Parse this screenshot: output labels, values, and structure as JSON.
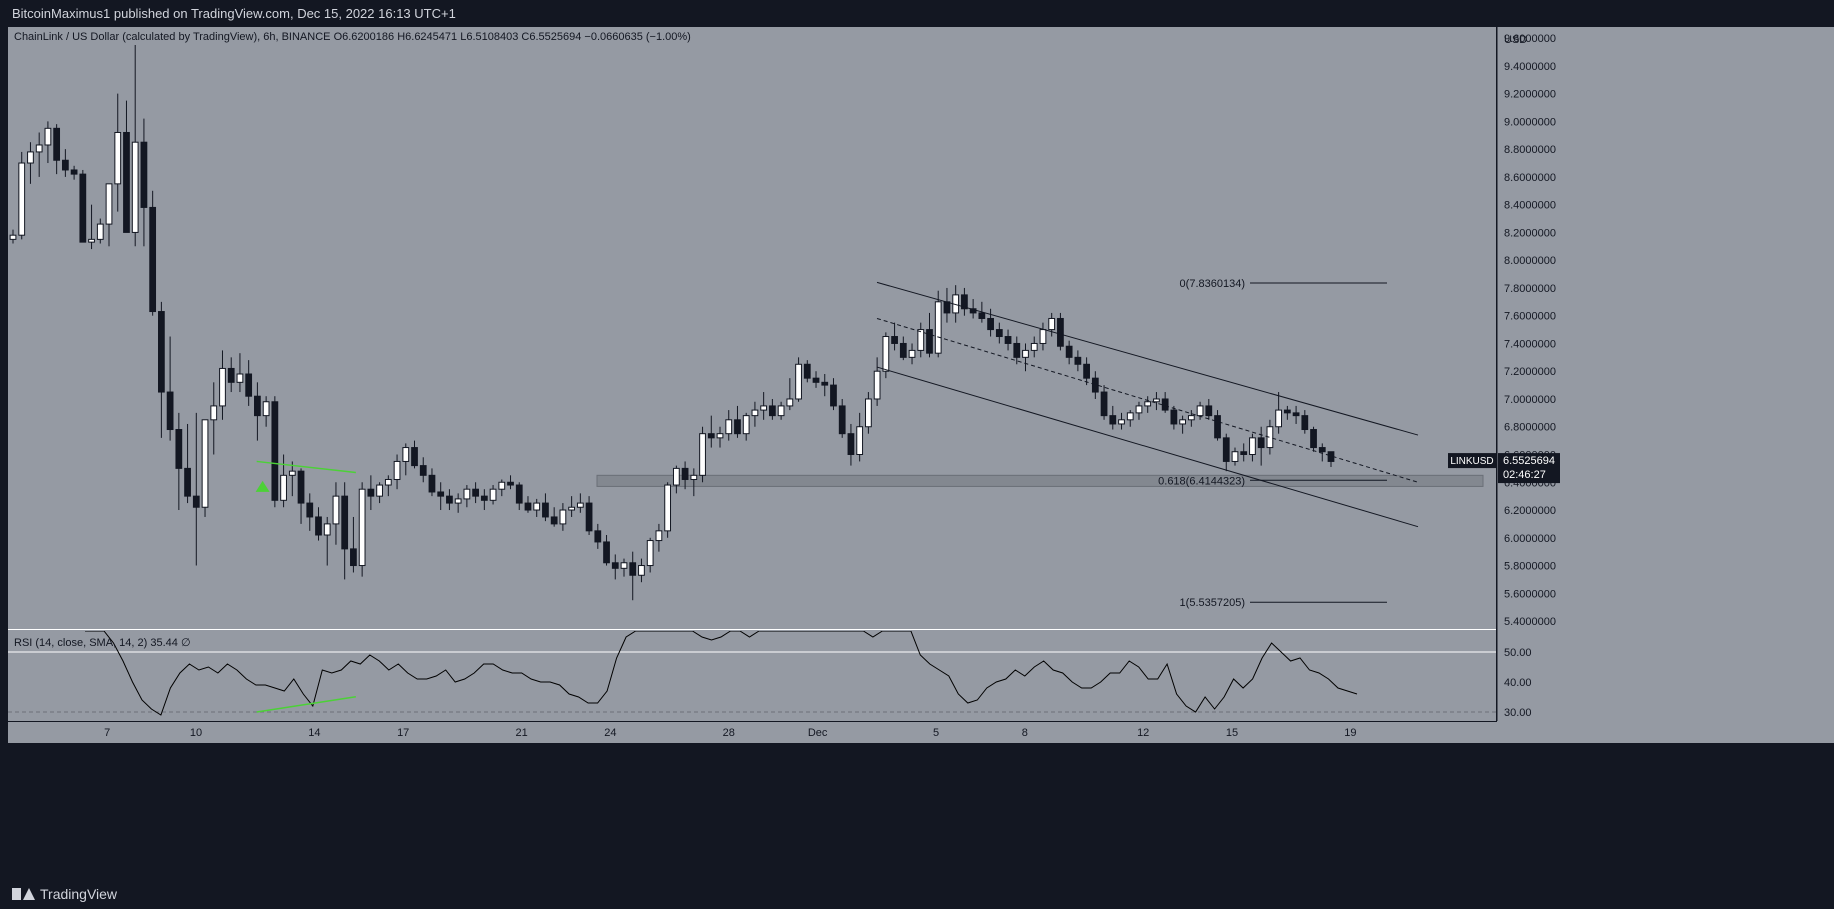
{
  "header": {
    "published": "BitcoinMaximus1 published on TradingView.com, Dec 15, 2022 16:13 UTC+1"
  },
  "legend": {
    "symbol": "ChainLink / US Dollar (calculated by TradingView), 6h, BINANCE",
    "o_label": "O",
    "o": "6.6200186",
    "h_label": "H",
    "h": "6.6245471",
    "l_label": "L",
    "l": "6.5108403",
    "c_label": "C",
    "c": "6.5525694",
    "change": "−0.0660635 (−1.00%)"
  },
  "price_tag": {
    "ticker": "LINKUSD",
    "price": "6.5525694",
    "countdown": "02:46:27"
  },
  "rsi_legend": {
    "text": "RSI (14, close, SMA, 14, 2)",
    "value": "35.44",
    "extra": "∅"
  },
  "footer": {
    "brand": "TradingView"
  },
  "colors": {
    "background": "#959aa3",
    "frame": "#131722",
    "up_body": "#ffffff",
    "down_body": "#131722",
    "rsi_line": "#000000",
    "divergence": "#4cd137",
    "support_zone": "#7d828a"
  },
  "chart_data": {
    "type": "candlestick",
    "currency": "USD",
    "y_ticks": [
      "9.6000000",
      "9.4000000",
      "9.2000000",
      "9.0000000",
      "8.8000000",
      "8.6000000",
      "8.4000000",
      "8.2000000",
      "8.0000000",
      "7.8000000",
      "7.6000000",
      "7.4000000",
      "7.2000000",
      "7.0000000",
      "6.8000000",
      "6.6000000",
      "6.4000000",
      "6.2000000",
      "6.0000000",
      "5.8000000",
      "5.6000000",
      "5.4000000"
    ],
    "ylim": [
      5.35,
      9.68
    ],
    "x_ticks": [
      "7",
      "10",
      "14",
      "17",
      "21",
      "24",
      "28",
      "Dec",
      "5",
      "8",
      "12",
      "15",
      "19"
    ],
    "rsi_ticks": [
      "50.00",
      "40.00",
      "30.00"
    ],
    "rsi_ylim": [
      27,
      57
    ],
    "fib_levels": [
      {
        "label": "0(7.8360134)",
        "value": 7.836
      },
      {
        "label": "0.618(6.4144323)",
        "value": 6.4144
      },
      {
        "label": "1(5.5357205)",
        "value": 5.5357
      }
    ],
    "support_zone": [
      6.37,
      6.45
    ],
    "channel": {
      "upper": [
        [
          7.84,
          6.74
        ]
      ],
      "middle": [
        [
          7.58,
          6.4
        ]
      ],
      "lower": [
        [
          7.23,
          6.08
        ]
      ]
    },
    "candles": [
      [
        8.15,
        8.22,
        8.12,
        8.18
      ],
      [
        8.18,
        8.78,
        8.15,
        8.7
      ],
      [
        8.7,
        8.85,
        8.55,
        8.78
      ],
      [
        8.78,
        8.92,
        8.6,
        8.83
      ],
      [
        8.83,
        9.0,
        8.7,
        8.95
      ],
      [
        8.95,
        8.98,
        8.62,
        8.72
      ],
      [
        8.72,
        8.8,
        8.6,
        8.65
      ],
      [
        8.65,
        8.68,
        8.58,
        8.62
      ],
      [
        8.62,
        8.65,
        8.15,
        8.13
      ],
      [
        8.13,
        8.4,
        8.08,
        8.15
      ],
      [
        8.15,
        8.3,
        8.12,
        8.26
      ],
      [
        8.26,
        8.55,
        8.1,
        8.55
      ],
      [
        8.55,
        9.2,
        8.35,
        8.92
      ],
      [
        8.92,
        9.15,
        8.2,
        8.2
      ],
      [
        8.2,
        9.55,
        8.1,
        8.85
      ],
      [
        8.85,
        9.02,
        8.1,
        8.38
      ],
      [
        8.38,
        8.5,
        7.6,
        7.63
      ],
      [
        7.63,
        7.7,
        6.72,
        7.05
      ],
      [
        7.05,
        7.45,
        6.7,
        6.78
      ],
      [
        6.78,
        6.9,
        6.2,
        6.5
      ],
      [
        6.5,
        6.82,
        6.25,
        6.3
      ],
      [
        6.3,
        6.9,
        5.8,
        6.22
      ],
      [
        6.22,
        6.85,
        6.15,
        6.85
      ],
      [
        6.85,
        7.12,
        6.6,
        6.95
      ],
      [
        6.95,
        7.35,
        6.85,
        7.22
      ],
      [
        7.22,
        7.3,
        7.05,
        7.12
      ],
      [
        7.12,
        7.33,
        7.05,
        7.18
      ],
      [
        7.18,
        7.28,
        6.95,
        7.02
      ],
      [
        7.02,
        7.12,
        6.7,
        6.88
      ],
      [
        6.88,
        7.02,
        6.8,
        6.98
      ],
      [
        6.98,
        7.02,
        6.22,
        6.27
      ],
      [
        6.27,
        6.6,
        6.22,
        6.45
      ],
      [
        6.45,
        6.55,
        6.3,
        6.48
      ],
      [
        6.48,
        6.5,
        6.1,
        6.25
      ],
      [
        6.25,
        6.32,
        6.05,
        6.15
      ],
      [
        6.15,
        6.22,
        5.98,
        6.02
      ],
      [
        6.02,
        6.15,
        5.8,
        6.1
      ],
      [
        6.1,
        6.4,
        5.95,
        6.3
      ],
      [
        6.3,
        6.4,
        5.7,
        5.92
      ],
      [
        5.92,
        6.15,
        5.75,
        5.8
      ],
      [
        5.8,
        6.4,
        5.72,
        6.35
      ],
      [
        6.35,
        6.45,
        6.2,
        6.3
      ],
      [
        6.3,
        6.4,
        6.25,
        6.38
      ],
      [
        6.38,
        6.45,
        6.3,
        6.42
      ],
      [
        6.42,
        6.6,
        6.35,
        6.55
      ],
      [
        6.55,
        6.68,
        6.45,
        6.65
      ],
      [
        6.65,
        6.7,
        6.5,
        6.52
      ],
      [
        6.52,
        6.58,
        6.4,
        6.45
      ],
      [
        6.45,
        6.5,
        6.3,
        6.33
      ],
      [
        6.33,
        6.4,
        6.2,
        6.3
      ],
      [
        6.3,
        6.35,
        6.2,
        6.25
      ],
      [
        6.25,
        6.32,
        6.18,
        6.28
      ],
      [
        6.28,
        6.38,
        6.22,
        6.35
      ],
      [
        6.35,
        6.4,
        6.25,
        6.3
      ],
      [
        6.3,
        6.35,
        6.2,
        6.27
      ],
      [
        6.27,
        6.38,
        6.24,
        6.35
      ],
      [
        6.35,
        6.42,
        6.3,
        6.4
      ],
      [
        6.4,
        6.45,
        6.35,
        6.38
      ],
      [
        6.38,
        6.4,
        6.2,
        6.25
      ],
      [
        6.25,
        6.3,
        6.18,
        6.2
      ],
      [
        6.2,
        6.28,
        6.15,
        6.25
      ],
      [
        6.25,
        6.32,
        6.12,
        6.15
      ],
      [
        6.15,
        6.22,
        6.08,
        6.1
      ],
      [
        6.1,
        6.25,
        6.05,
        6.2
      ],
      [
        6.2,
        6.3,
        6.15,
        6.22
      ],
      [
        6.22,
        6.32,
        6.18,
        6.25
      ],
      [
        6.25,
        6.3,
        6.02,
        6.05
      ],
      [
        6.05,
        6.1,
        5.92,
        5.97
      ],
      [
        5.97,
        6.02,
        5.8,
        5.82
      ],
      [
        5.82,
        5.88,
        5.7,
        5.78
      ],
      [
        5.78,
        5.85,
        5.72,
        5.82
      ],
      [
        5.82,
        5.9,
        5.55,
        5.73
      ],
      [
        5.73,
        5.85,
        5.68,
        5.8
      ],
      [
        5.8,
        6.0,
        5.75,
        5.98
      ],
      [
        5.98,
        6.1,
        5.9,
        6.05
      ],
      [
        6.05,
        6.4,
        6.0,
        6.38
      ],
      [
        6.38,
        6.52,
        6.32,
        6.5
      ],
      [
        6.5,
        6.55,
        6.35,
        6.42
      ],
      [
        6.42,
        6.5,
        6.3,
        6.45
      ],
      [
        6.45,
        6.8,
        6.4,
        6.75
      ],
      [
        6.75,
        6.88,
        6.65,
        6.72
      ],
      [
        6.72,
        6.8,
        6.65,
        6.75
      ],
      [
        6.75,
        6.92,
        6.7,
        6.85
      ],
      [
        6.85,
        6.95,
        6.72,
        6.75
      ],
      [
        6.75,
        6.9,
        6.7,
        6.88
      ],
      [
        6.88,
        6.98,
        6.8,
        6.92
      ],
      [
        6.92,
        7.05,
        6.85,
        6.95
      ],
      [
        6.95,
        7.0,
        6.85,
        6.88
      ],
      [
        6.88,
        6.98,
        6.85,
        6.95
      ],
      [
        6.95,
        7.15,
        6.92,
        7.0
      ],
      [
        7.0,
        7.3,
        6.98,
        7.25
      ],
      [
        7.25,
        7.28,
        7.12,
        7.15
      ],
      [
        7.15,
        7.2,
        7.08,
        7.12
      ],
      [
        7.12,
        7.18,
        7.02,
        7.1
      ],
      [
        7.1,
        7.15,
        6.92,
        6.95
      ],
      [
        6.95,
        7.0,
        6.72,
        6.75
      ],
      [
        6.75,
        6.82,
        6.52,
        6.6
      ],
      [
        6.6,
        6.9,
        6.55,
        6.8
      ],
      [
        6.8,
        7.05,
        6.75,
        7.0
      ],
      [
        7.0,
        7.3,
        6.95,
        7.2
      ],
      [
        7.2,
        7.48,
        7.15,
        7.45
      ],
      [
        7.45,
        7.55,
        7.35,
        7.4
      ],
      [
        7.4,
        7.45,
        7.28,
        7.3
      ],
      [
        7.3,
        7.4,
        7.25,
        7.35
      ],
      [
        7.35,
        7.55,
        7.3,
        7.5
      ],
      [
        7.5,
        7.62,
        7.3,
        7.33
      ],
      [
        7.33,
        7.78,
        7.3,
        7.7
      ],
      [
        7.7,
        7.8,
        7.55,
        7.62
      ],
      [
        7.62,
        7.82,
        7.55,
        7.75
      ],
      [
        7.75,
        7.8,
        7.6,
        7.65
      ],
      [
        7.65,
        7.72,
        7.58,
        7.62
      ],
      [
        7.62,
        7.7,
        7.55,
        7.58
      ],
      [
        7.58,
        7.65,
        7.45,
        7.5
      ],
      [
        7.5,
        7.55,
        7.4,
        7.45
      ],
      [
        7.45,
        7.5,
        7.35,
        7.4
      ],
      [
        7.4,
        7.45,
        7.25,
        7.3
      ],
      [
        7.3,
        7.4,
        7.2,
        7.35
      ],
      [
        7.35,
        7.45,
        7.3,
        7.4
      ],
      [
        7.4,
        7.55,
        7.35,
        7.5
      ],
      [
        7.5,
        7.62,
        7.45,
        7.58
      ],
      [
        7.58,
        7.62,
        7.35,
        7.38
      ],
      [
        7.38,
        7.42,
        7.25,
        7.3
      ],
      [
        7.3,
        7.35,
        7.2,
        7.25
      ],
      [
        7.25,
        7.3,
        7.1,
        7.15
      ],
      [
        7.15,
        7.2,
        7.0,
        7.05
      ],
      [
        7.05,
        7.1,
        6.85,
        6.88
      ],
      [
        6.88,
        6.95,
        6.78,
        6.82
      ],
      [
        6.82,
        6.9,
        6.78,
        6.85
      ],
      [
        6.85,
        6.92,
        6.8,
        6.9
      ],
      [
        6.9,
        6.98,
        6.85,
        6.95
      ],
      [
        6.95,
        7.02,
        6.9,
        6.98
      ],
      [
        6.98,
        7.05,
        6.92,
        7.0
      ],
      [
        7.0,
        7.05,
        6.9,
        6.92
      ],
      [
        6.92,
        6.95,
        6.78,
        6.82
      ],
      [
        6.82,
        6.88,
        6.75,
        6.85
      ],
      [
        6.85,
        6.92,
        6.8,
        6.88
      ],
      [
        6.88,
        6.98,
        6.85,
        6.95
      ],
      [
        6.95,
        7.0,
        6.85,
        6.88
      ],
      [
        6.88,
        6.92,
        6.7,
        6.72
      ],
      [
        6.72,
        6.75,
        6.48,
        6.55
      ],
      [
        6.55,
        6.65,
        6.52,
        6.62
      ],
      [
        6.62,
        6.68,
        6.55,
        6.6
      ],
      [
        6.6,
        6.75,
        6.55,
        6.72
      ],
      [
        6.72,
        6.8,
        6.52,
        6.65
      ],
      [
        6.65,
        6.85,
        6.6,
        6.8
      ],
      [
        6.8,
        7.05,
        6.75,
        6.92
      ],
      [
        6.92,
        6.95,
        6.85,
        6.9
      ],
      [
        6.9,
        6.95,
        6.82,
        6.88
      ],
      [
        6.88,
        6.92,
        6.75,
        6.78
      ],
      [
        6.78,
        6.8,
        6.62,
        6.65
      ],
      [
        6.65,
        6.68,
        6.55,
        6.62
      ],
      [
        6.62,
        6.62,
        6.51,
        6.55
      ]
    ],
    "rsi": [
      69,
      64,
      59,
      53,
      47,
      40,
      34,
      31,
      29,
      38,
      43,
      46,
      44,
      45,
      43,
      46,
      44,
      41,
      39,
      39,
      38,
      37,
      41,
      36,
      32,
      44,
      43,
      44,
      47,
      46,
      49,
      47,
      44,
      46,
      43,
      41,
      41,
      42,
      44,
      40,
      41,
      43,
      46,
      46,
      44,
      43,
      43,
      41,
      40,
      40,
      39,
      36,
      35,
      33,
      33,
      37,
      48,
      55,
      58,
      64,
      66,
      70,
      77,
      75,
      66,
      55,
      54,
      55,
      60,
      58,
      55,
      59,
      60,
      63,
      63,
      65,
      67,
      65,
      62,
      58,
      60,
      62,
      62,
      55,
      59,
      61,
      60,
      62,
      49,
      46,
      44,
      42,
      36,
      33,
      34,
      38,
      40,
      41,
      44,
      42,
      45,
      47,
      44,
      43,
      40,
      38,
      38,
      40,
      43,
      43,
      47,
      45,
      41,
      41,
      46,
      36,
      32,
      30,
      35,
      31,
      35,
      41,
      38,
      41,
      48,
      53,
      50,
      47,
      48,
      44,
      43,
      41,
      38,
      37,
      36
    ],
    "rsi_divergence": [
      [
        12.05,
        30.0
      ],
      [
        15.4,
        35.1
      ]
    ],
    "price_divergence": [
      [
        12.05,
        6.55
      ],
      [
        15.4,
        6.47
      ]
    ]
  }
}
